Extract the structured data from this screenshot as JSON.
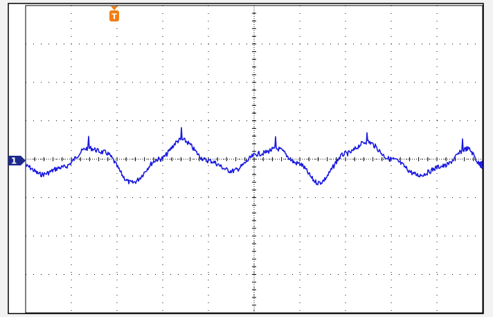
{
  "channel_marker": "1",
  "trigger_marker": "T"
}
